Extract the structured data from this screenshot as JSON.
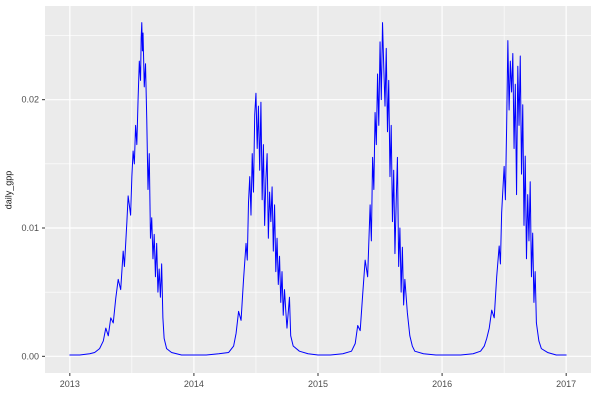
{
  "chart_data": {
    "type": "line",
    "title": "",
    "xlabel": "",
    "ylabel": "daily_gpp",
    "legend": "none",
    "grid": true,
    "theme": "ggplot2-gray",
    "xlim": [
      2012.8,
      2017.2
    ],
    "ylim": [
      -0.0013,
      0.0273
    ],
    "x_ticks": {
      "values": [
        2013,
        2014,
        2015,
        2016,
        2017
      ],
      "labels": [
        "2013",
        "2014",
        "2015",
        "2016",
        "2017"
      ]
    },
    "y_ticks": {
      "values": [
        0,
        0.01,
        0.02
      ],
      "labels": [
        "0.00",
        "0.01",
        "0.02"
      ]
    },
    "x_minor_ticks": [
      2013.5,
      2014.5,
      2015.5,
      2016.5
    ],
    "y_minor_ticks": [
      0.005,
      0.015,
      0.025
    ],
    "colors": {
      "panel_bg": "#EBEBEB",
      "grid_major": "#FFFFFF",
      "grid_minor": "#FFFFFF",
      "line": "#0000FF",
      "tick_mark": "#333333",
      "tick_text": "#4D4D4D",
      "axis_title_text": "#1A1A1A"
    },
    "series": [
      {
        "name": "daily_gpp",
        "color": "#0000FF",
        "points": [
          [
            2013.0,
            0.0001
          ],
          [
            2013.08,
            0.0001
          ],
          [
            2013.16,
            0.0002
          ],
          [
            2013.2,
            0.0003
          ],
          [
            2013.24,
            0.0006
          ],
          [
            2013.27,
            0.0012
          ],
          [
            2013.29,
            0.0022
          ],
          [
            2013.31,
            0.0016
          ],
          [
            2013.33,
            0.003
          ],
          [
            2013.35,
            0.0026
          ],
          [
            2013.37,
            0.0045
          ],
          [
            2013.39,
            0.006
          ],
          [
            2013.41,
            0.0052
          ],
          [
            2013.43,
            0.0082
          ],
          [
            2013.44,
            0.007
          ],
          [
            2013.46,
            0.0105
          ],
          [
            2013.47,
            0.0125
          ],
          [
            2013.49,
            0.011
          ],
          [
            2013.5,
            0.014
          ],
          [
            2013.51,
            0.016
          ],
          [
            2013.52,
            0.015
          ],
          [
            2013.53,
            0.018
          ],
          [
            2013.54,
            0.0165
          ],
          [
            2013.55,
            0.02
          ],
          [
            2013.56,
            0.023
          ],
          [
            2013.57,
            0.0215
          ],
          [
            2013.575,
            0.0248
          ],
          [
            2013.58,
            0.026
          ],
          [
            2013.585,
            0.0238
          ],
          [
            2013.59,
            0.0252
          ],
          [
            2013.6,
            0.021
          ],
          [
            2013.61,
            0.0228
          ],
          [
            2013.62,
            0.0185
          ],
          [
            2013.63,
            0.013
          ],
          [
            2013.64,
            0.0158
          ],
          [
            2013.65,
            0.0092
          ],
          [
            2013.66,
            0.0108
          ],
          [
            2013.67,
            0.0076
          ],
          [
            2013.68,
            0.0095
          ],
          [
            2013.69,
            0.0062
          ],
          [
            2013.7,
            0.0088
          ],
          [
            2013.71,
            0.005
          ],
          [
            2013.72,
            0.0068
          ],
          [
            2013.73,
            0.0046
          ],
          [
            2013.74,
            0.0072
          ],
          [
            2013.75,
            0.003
          ],
          [
            2013.76,
            0.0014
          ],
          [
            2013.78,
            0.0006
          ],
          [
            2013.82,
            0.0003
          ],
          [
            2013.9,
            0.0001
          ],
          [
            2014.0,
            0.0001
          ],
          [
            2014.1,
            0.0001
          ],
          [
            2014.2,
            0.0002
          ],
          [
            2014.28,
            0.0003
          ],
          [
            2014.32,
            0.0008
          ],
          [
            2014.34,
            0.0018
          ],
          [
            2014.36,
            0.0035
          ],
          [
            2014.38,
            0.0028
          ],
          [
            2014.4,
            0.006
          ],
          [
            2014.42,
            0.0088
          ],
          [
            2014.43,
            0.0075
          ],
          [
            2014.44,
            0.012
          ],
          [
            2014.45,
            0.014
          ],
          [
            2014.46,
            0.011
          ],
          [
            2014.47,
            0.0158
          ],
          [
            2014.48,
            0.0128
          ],
          [
            2014.49,
            0.0188
          ],
          [
            2014.5,
            0.0205
          ],
          [
            2014.51,
            0.0162
          ],
          [
            2014.52,
            0.0195
          ],
          [
            2014.53,
            0.0145
          ],
          [
            2014.54,
            0.0198
          ],
          [
            2014.55,
            0.0122
          ],
          [
            2014.56,
            0.0165
          ],
          [
            2014.57,
            0.0102
          ],
          [
            2014.58,
            0.0138
          ],
          [
            2014.59,
            0.0158
          ],
          [
            2014.6,
            0.0092
          ],
          [
            2014.61,
            0.0128
          ],
          [
            2014.62,
            0.0105
          ],
          [
            2014.63,
            0.0132
          ],
          [
            2014.64,
            0.0082
          ],
          [
            2014.65,
            0.0118
          ],
          [
            2014.66,
            0.0066
          ],
          [
            2014.67,
            0.0092
          ],
          [
            2014.68,
            0.0056
          ],
          [
            2014.69,
            0.0078
          ],
          [
            2014.7,
            0.0042
          ],
          [
            2014.71,
            0.0066
          ],
          [
            2014.72,
            0.0032
          ],
          [
            2014.73,
            0.0052
          ],
          [
            2014.74,
            0.0036
          ],
          [
            2014.75,
            0.0022
          ],
          [
            2014.77,
            0.0046
          ],
          [
            2014.78,
            0.0016
          ],
          [
            2014.8,
            0.0008
          ],
          [
            2014.85,
            0.0004
          ],
          [
            2014.92,
            0.0002
          ],
          [
            2015.0,
            0.0001
          ],
          [
            2015.1,
            0.0001
          ],
          [
            2015.2,
            0.0002
          ],
          [
            2015.27,
            0.0004
          ],
          [
            2015.3,
            0.001
          ],
          [
            2015.32,
            0.0024
          ],
          [
            2015.34,
            0.002
          ],
          [
            2015.36,
            0.0048
          ],
          [
            2015.38,
            0.0075
          ],
          [
            2015.4,
            0.0062
          ],
          [
            2015.42,
            0.0118
          ],
          [
            2015.43,
            0.009
          ],
          [
            2015.44,
            0.0155
          ],
          [
            2015.45,
            0.013
          ],
          [
            2015.46,
            0.019
          ],
          [
            2015.47,
            0.0165
          ],
          [
            2015.48,
            0.022
          ],
          [
            2015.49,
            0.018
          ],
          [
            2015.5,
            0.0245
          ],
          [
            2015.51,
            0.02
          ],
          [
            2015.52,
            0.026
          ],
          [
            2015.53,
            0.0225
          ],
          [
            2015.54,
            0.0195
          ],
          [
            2015.55,
            0.024
          ],
          [
            2015.56,
            0.0175
          ],
          [
            2015.57,
            0.0215
          ],
          [
            2015.58,
            0.014
          ],
          [
            2015.59,
            0.018
          ],
          [
            2015.6,
            0.0105
          ],
          [
            2015.61,
            0.0145
          ],
          [
            2015.62,
            0.008
          ],
          [
            2015.63,
            0.012
          ],
          [
            2015.64,
            0.0155
          ],
          [
            2015.65,
            0.007
          ],
          [
            2015.66,
            0.01
          ],
          [
            2015.67,
            0.005
          ],
          [
            2015.68,
            0.0085
          ],
          [
            2015.69,
            0.004
          ],
          [
            2015.7,
            0.006
          ],
          [
            2015.72,
            0.0034
          ],
          [
            2015.74,
            0.0016
          ],
          [
            2015.76,
            0.0008
          ],
          [
            2015.78,
            0.0004
          ],
          [
            2015.85,
            0.0002
          ],
          [
            2015.95,
            0.0001
          ],
          [
            2016.05,
            0.0001
          ],
          [
            2016.15,
            0.0001
          ],
          [
            2016.25,
            0.0002
          ],
          [
            2016.31,
            0.0004
          ],
          [
            2016.34,
            0.0008
          ],
          [
            2016.36,
            0.0014
          ],
          [
            2016.38,
            0.0022
          ],
          [
            2016.4,
            0.0036
          ],
          [
            2016.42,
            0.003
          ],
          [
            2016.44,
            0.0062
          ],
          [
            2016.46,
            0.0086
          ],
          [
            2016.47,
            0.0072
          ],
          [
            2016.48,
            0.0112
          ],
          [
            2016.5,
            0.0148
          ],
          [
            2016.51,
            0.0122
          ],
          [
            2016.52,
            0.0178
          ],
          [
            2016.53,
            0.0246
          ],
          [
            2016.54,
            0.0192
          ],
          [
            2016.55,
            0.023
          ],
          [
            2016.56,
            0.0206
          ],
          [
            2016.57,
            0.0236
          ],
          [
            2016.58,
            0.0162
          ],
          [
            2016.59,
            0.0212
          ],
          [
            2016.6,
            0.0126
          ],
          [
            2016.61,
            0.0226
          ],
          [
            2016.62,
            0.018
          ],
          [
            2016.63,
            0.0234
          ],
          [
            2016.64,
            0.0142
          ],
          [
            2016.65,
            0.0196
          ],
          [
            2016.66,
            0.0102
          ],
          [
            2016.67,
            0.0156
          ],
          [
            2016.68,
            0.0076
          ],
          [
            2016.69,
            0.0126
          ],
          [
            2016.7,
            0.009
          ],
          [
            2016.71,
            0.0136
          ],
          [
            2016.72,
            0.0062
          ],
          [
            2016.73,
            0.0096
          ],
          [
            2016.74,
            0.0042
          ],
          [
            2016.75,
            0.0066
          ],
          [
            2016.76,
            0.0026
          ],
          [
            2016.78,
            0.0012
          ],
          [
            2016.8,
            0.0006
          ],
          [
            2016.85,
            0.0003
          ],
          [
            2016.92,
            0.0001
          ],
          [
            2017.0,
            0.0001
          ]
        ]
      }
    ]
  }
}
